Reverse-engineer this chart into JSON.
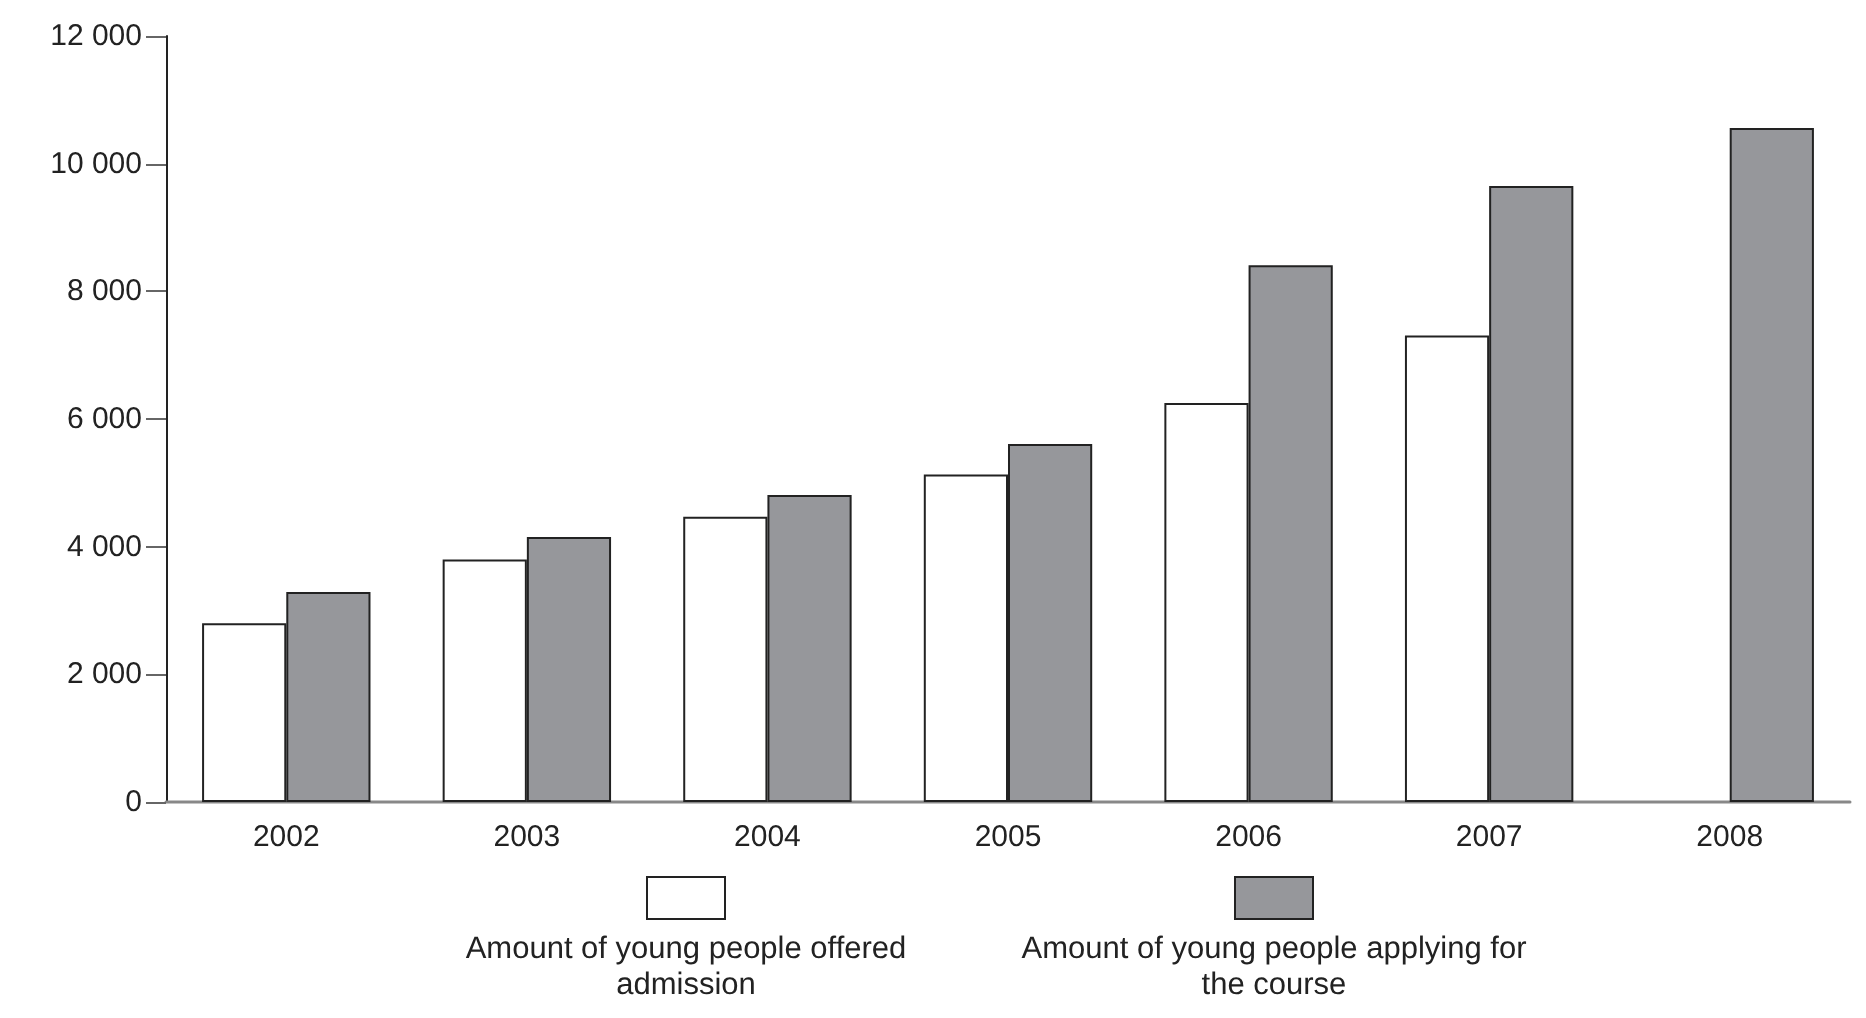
{
  "chart_data": {
    "type": "bar",
    "categories": [
      "2002",
      "2003",
      "2004",
      "2005",
      "2006",
      "2007",
      "2008"
    ],
    "series": [
      {
        "name": "Amount of young people offered admission",
        "color": "#ffffff",
        "values": [
          2800,
          3800,
          4470,
          5130,
          6250,
          7310,
          null
        ]
      },
      {
        "name": "Amount of young people applying for the course",
        "color": "#96979b",
        "values": [
          3290,
          4150,
          4810,
          5610,
          8410,
          9650,
          10560
        ]
      }
    ],
    "ylim": [
      0,
      12000
    ],
    "yticks": [
      {
        "value": 0,
        "label": "0"
      },
      {
        "value": 2000,
        "label": "2 000"
      },
      {
        "value": 4000,
        "label": "4 000"
      },
      {
        "value": 6000,
        "label": "6 000"
      },
      {
        "value": 8000,
        "label": "8 000"
      },
      {
        "value": 10000,
        "label": "10 000"
      },
      {
        "value": 12000,
        "label": "12 000"
      }
    ],
    "grid": false,
    "legend": "bottom"
  }
}
